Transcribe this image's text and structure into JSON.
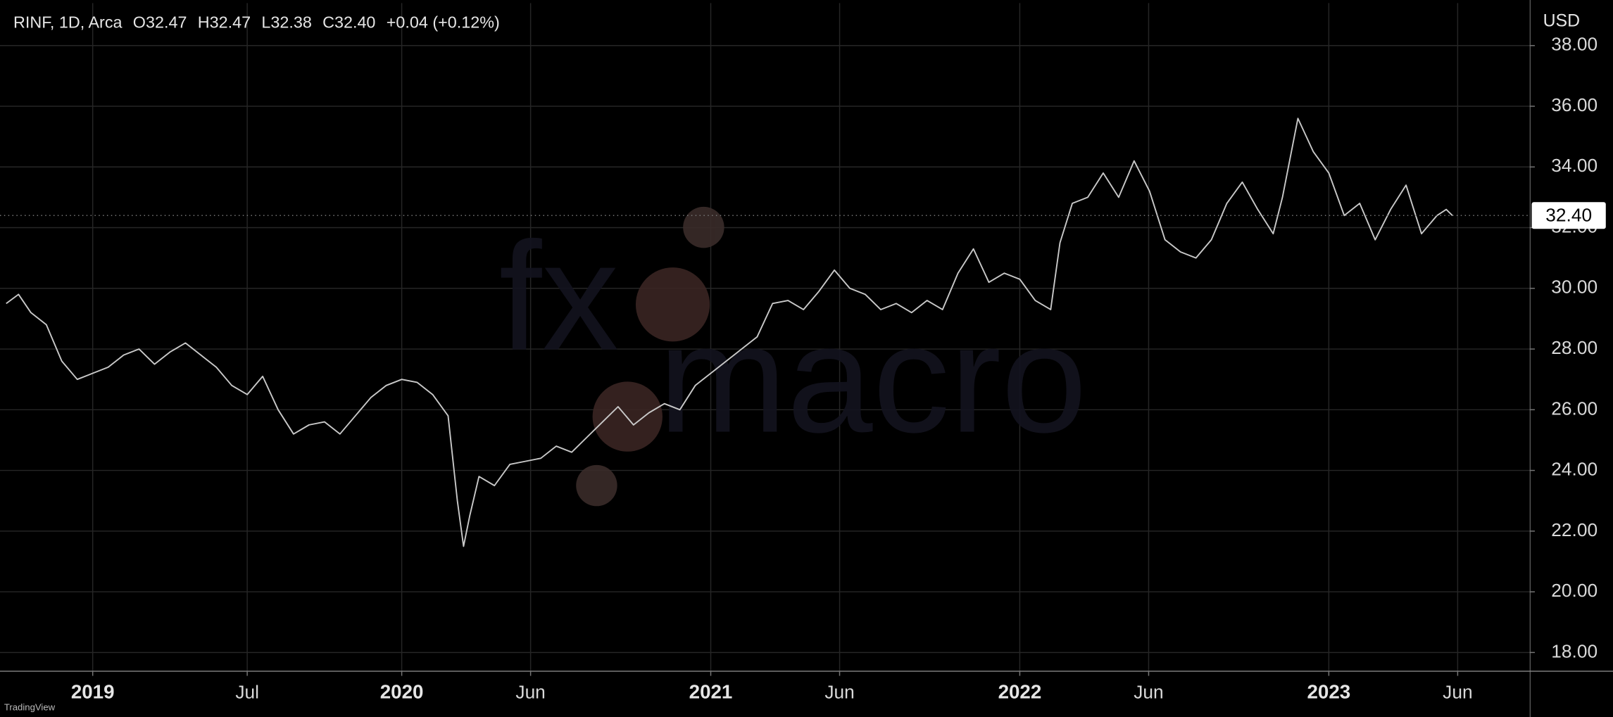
{
  "chart_data": {
    "type": "line",
    "header": {
      "symbol": "RINF, 1D, Arca",
      "open": "O32.47",
      "high": "H32.47",
      "low": "L32.38",
      "close": "C32.40",
      "change": "+0.04 (+0.12%)"
    },
    "currency": "USD",
    "footer": "TradingView",
    "watermark": {
      "left": "fx",
      "right": "macro"
    },
    "color": "#c9c9c9",
    "grid": true,
    "x": [
      2018.72,
      2018.76,
      2018.8,
      2018.85,
      2018.9,
      2018.95,
      2019.0,
      2019.05,
      2019.1,
      2019.15,
      2019.2,
      2019.25,
      2019.3,
      2019.35,
      2019.4,
      2019.45,
      2019.5,
      2019.55,
      2019.6,
      2019.65,
      2019.7,
      2019.75,
      2019.8,
      2019.85,
      2019.9,
      2019.95,
      2020.0,
      2020.05,
      2020.1,
      2020.15,
      2020.18,
      2020.2,
      2020.22,
      2020.25,
      2020.3,
      2020.35,
      2020.4,
      2020.45,
      2020.5,
      2020.55,
      2020.6,
      2020.65,
      2020.7,
      2020.75,
      2020.8,
      2020.85,
      2020.9,
      2020.95,
      2021.0,
      2021.05,
      2021.1,
      2021.15,
      2021.2,
      2021.25,
      2021.3,
      2021.35,
      2021.4,
      2021.45,
      2021.5,
      2021.55,
      2021.6,
      2021.65,
      2021.7,
      2021.75,
      2021.8,
      2021.85,
      2021.9,
      2021.95,
      2022.0,
      2022.05,
      2022.1,
      2022.13,
      2022.17,
      2022.22,
      2022.27,
      2022.32,
      2022.37,
      2022.42,
      2022.47,
      2022.52,
      2022.57,
      2022.62,
      2022.67,
      2022.72,
      2022.77,
      2022.82,
      2022.85,
      2022.9,
      2022.95,
      2023.0,
      2023.05,
      2023.1,
      2023.15,
      2023.2,
      2023.25,
      2023.3,
      2023.35,
      2023.38,
      2023.4
    ],
    "values": [
      29.5,
      29.8,
      29.2,
      28.8,
      27.6,
      27.0,
      27.2,
      27.4,
      27.8,
      28.0,
      27.5,
      27.9,
      28.2,
      27.8,
      27.4,
      26.8,
      26.5,
      27.1,
      26.0,
      25.2,
      25.5,
      25.6,
      25.2,
      25.8,
      26.4,
      26.8,
      27.0,
      26.9,
      26.5,
      25.8,
      23.0,
      21.5,
      22.5,
      23.8,
      23.5,
      24.2,
      24.3,
      24.4,
      24.8,
      24.6,
      25.1,
      25.6,
      26.1,
      25.5,
      25.9,
      26.2,
      26.0,
      26.8,
      27.2,
      27.6,
      28.0,
      28.4,
      29.5,
      29.6,
      29.3,
      29.9,
      30.6,
      30.0,
      29.8,
      29.3,
      29.5,
      29.2,
      29.6,
      29.3,
      30.5,
      31.3,
      30.2,
      30.5,
      30.3,
      29.6,
      29.3,
      31.5,
      32.8,
      33.0,
      33.8,
      33.0,
      34.2,
      33.2,
      31.6,
      31.2,
      31.0,
      31.6,
      32.8,
      33.5,
      32.6,
      31.8,
      33.0,
      35.6,
      34.5,
      33.8,
      32.4,
      32.8,
      31.6,
      32.6,
      33.4,
      31.8,
      32.4,
      32.6,
      32.4
    ],
    "xlim": [
      2018.7,
      2023.65
    ],
    "ylim": [
      17.4,
      39.4
    ],
    "xticks": [
      {
        "value": 2019,
        "label": "2019"
      },
      {
        "value": 2019.5,
        "label": "Jul"
      },
      {
        "value": 2020,
        "label": "2020"
      },
      {
        "value": 2020.417,
        "label": "Jun"
      },
      {
        "value": 2021,
        "label": "2021"
      },
      {
        "value": 2021.417,
        "label": "Jun"
      },
      {
        "value": 2022,
        "label": "2022"
      },
      {
        "value": 2022.417,
        "label": "Jun"
      },
      {
        "value": 2023,
        "label": "2023"
      },
      {
        "value": 2023.417,
        "label": "Jun"
      }
    ],
    "yticks": [
      {
        "value": 18,
        "label": "18.00"
      },
      {
        "value": 20,
        "label": "20.00"
      },
      {
        "value": 22,
        "label": "22.00"
      },
      {
        "value": 24,
        "label": "24.00"
      },
      {
        "value": 26,
        "label": "26.00"
      },
      {
        "value": 28,
        "label": "28.00"
      },
      {
        "value": 30,
        "label": "30.00"
      },
      {
        "value": 32,
        "label": "32.00"
      },
      {
        "value": 34,
        "label": "34.00"
      },
      {
        "value": 36,
        "label": "36.00"
      },
      {
        "value": 38,
        "label": "38.00"
      }
    ],
    "last_price": {
      "value": 32.4,
      "label": "32.40"
    }
  }
}
